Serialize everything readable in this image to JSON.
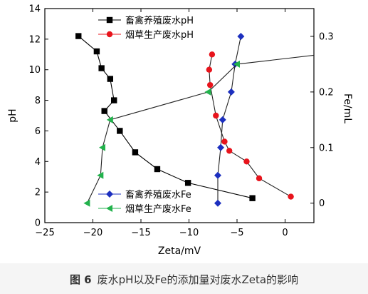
{
  "chart_data": {
    "type": "line",
    "xlabel": "Zeta/mV",
    "ylabel": "pH",
    "y2label": "Fe/mL",
    "xlim": [
      -25,
      3
    ],
    "ylim": [
      0,
      14
    ],
    "y2lim": [
      -0.035,
      0.35
    ],
    "x_ticks": [
      "−25",
      "−20",
      "−15",
      "−10",
      "−5",
      "0"
    ],
    "y_ticks": [
      "0",
      "2",
      "4",
      "6",
      "8",
      "10",
      "12",
      "14"
    ],
    "y2_ticks": [
      "0",
      "0.1",
      "0.2",
      "0.3"
    ],
    "legend_top": {
      "position": "top-left",
      "entries": [
        "畜禽养殖废水pH",
        "烟草生产废水pH"
      ]
    },
    "legend_bottom": {
      "position": "bottom-left",
      "entries": [
        "畜禽养殖废水Fe",
        "烟草生产废水Fe"
      ]
    },
    "series": [
      {
        "name": "畜禽养殖废水pH",
        "axis": "left",
        "color": "#000000",
        "marker": "square",
        "points": [
          [
            -21.5,
            12.2
          ],
          [
            -19.6,
            11.2
          ],
          [
            -19.1,
            10.1
          ],
          [
            -18.2,
            9.4
          ],
          [
            -17.8,
            8.0
          ],
          [
            -18.8,
            7.3
          ],
          [
            -17.2,
            6.0
          ],
          [
            -15.6,
            4.6
          ],
          [
            -13.3,
            3.5
          ],
          [
            -10.1,
            2.6
          ],
          [
            -3.4,
            1.6
          ]
        ]
      },
      {
        "name": "烟草生产废水pH",
        "axis": "left",
        "color": "#e8141c",
        "marker": "circle",
        "points": [
          [
            -7.6,
            11.0
          ],
          [
            -7.9,
            10.0
          ],
          [
            -7.8,
            9.0
          ],
          [
            -7.2,
            7.0
          ],
          [
            -6.3,
            5.3
          ],
          [
            -5.8,
            4.7
          ],
          [
            -4.0,
            4.0
          ],
          [
            -2.7,
            2.9
          ],
          [
            0.6,
            1.7
          ]
        ]
      },
      {
        "name": "畜禽养殖废水Fe",
        "axis": "right",
        "color": "#1c2fbf",
        "marker": "diamond",
        "points": [
          [
            -4.6,
            0.3
          ],
          [
            -5.2,
            0.25
          ],
          [
            -5.6,
            0.2
          ],
          [
            -6.5,
            0.15
          ],
          [
            -6.7,
            0.1
          ],
          [
            -7.0,
            0.05
          ],
          [
            -7.0,
            0.0
          ]
        ]
      },
      {
        "name": "烟草生产废水Fe",
        "axis": "right",
        "color": "#22b24c",
        "marker": "triangle-left",
        "points": [
          [
            3.5,
            0.267
          ],
          [
            -5.0,
            0.25
          ],
          [
            -8.0,
            0.2
          ],
          [
            -18.2,
            0.15
          ],
          [
            -19.0,
            0.1
          ],
          [
            -19.2,
            0.05
          ],
          [
            -20.6,
            0.0
          ]
        ]
      }
    ]
  },
  "caption": {
    "figure_label": "图 6",
    "text": "废水pH以及Fe的添加量对废水Zeta的影响"
  }
}
